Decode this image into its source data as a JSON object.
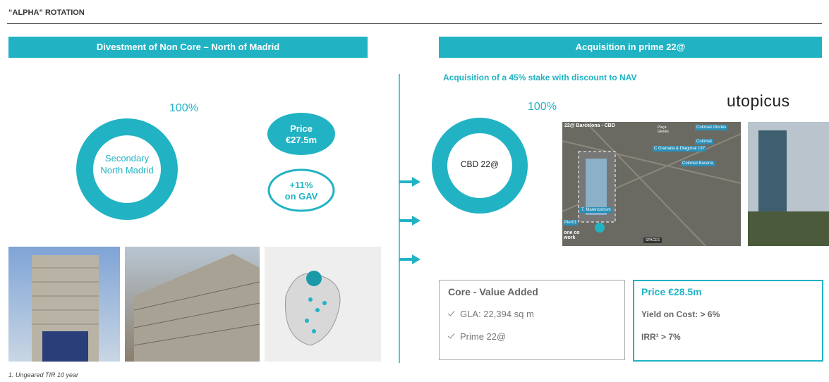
{
  "header": {
    "title": "“ALPHA” ROTATION"
  },
  "left": {
    "banner": "Divestment of Non Core – North of Madrid",
    "donut": {
      "percent": "100%",
      "label": [
        "Secondary",
        "North Madrid"
      ]
    },
    "price": [
      "Price",
      "€27.5m"
    ],
    "gav": [
      "+11%",
      "on GAV"
    ]
  },
  "right": {
    "banner": "Acquisition  in prime 22@",
    "subtitle": "Acquisition  of a 45% stake with discount to NAV",
    "brand": "utopicus",
    "donut": {
      "percent": "100%",
      "label": "CBD 22@"
    },
    "map": {
      "title": "22@ Barcelona - CBD",
      "labels": [
        "Plaça Glories",
        "Colonial Glories",
        "Colonial",
        "C Granada & Diagonal 197",
        "Colonial Bacana",
        "T. Marenostrum",
        "Pier01",
        "one co work",
        "SPACES"
      ]
    },
    "box1": {
      "title": "Core - Value Added",
      "items": [
        "GLA: 22,394 sq m",
        "Prime 22@"
      ]
    },
    "box2": {
      "title": "Price €28.5m",
      "items": [
        "Yield on Cost:  > 6%",
        "IRR¹ > 7%"
      ]
    }
  },
  "footnote": "1. Ungeared  TIR 10 year"
}
